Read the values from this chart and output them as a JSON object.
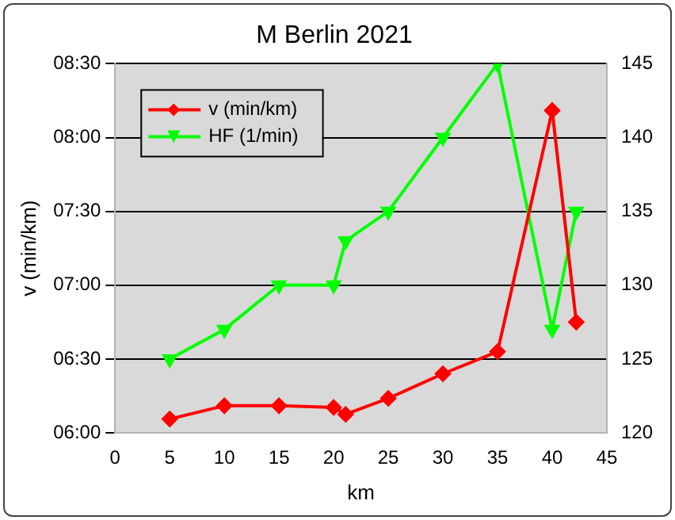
{
  "chart_data": {
    "type": "line",
    "title": "M Berlin 2021",
    "xlabel": "km",
    "ylabel": "v (min/km)",
    "series": [
      {
        "name": "v (min/km)",
        "color": "#ff0000",
        "marker": "diamond",
        "x": [
          5,
          10,
          15,
          20,
          21.1,
          25,
          30,
          35,
          40,
          42.2
        ],
        "values": [
          365.6,
          371,
          371,
          370.3,
          367.5,
          374,
          384,
          393,
          491,
          405
        ]
      },
      {
        "name": "HF (1/min)",
        "color": "#00ff00",
        "marker": "triangle",
        "axis": "y2",
        "x": [
          5,
          10,
          15,
          20,
          21.1,
          25,
          30,
          35,
          40,
          42.2
        ],
        "values": [
          125,
          127,
          130,
          130,
          133,
          135,
          140,
          145,
          127,
          135
        ]
      }
    ],
    "xlim": [
      0,
      45
    ],
    "xticks": [
      0,
      5,
      10,
      15,
      20,
      25,
      30,
      35,
      40,
      45
    ],
    "ylim": [
      360,
      510
    ],
    "yticks": [
      {
        "value": 360,
        "label": "06:00"
      },
      {
        "value": 390,
        "label": "06:30"
      },
      {
        "value": 420,
        "label": "07:00"
      },
      {
        "value": 450,
        "label": "07:30"
      },
      {
        "value": 480,
        "label": "08:00"
      },
      {
        "value": 510,
        "label": "08:30"
      }
    ],
    "y2lim": [
      120,
      145
    ],
    "y2ticks": [
      120,
      125,
      130,
      135,
      140,
      145
    ],
    "grid": "y",
    "legend": "top left"
  }
}
